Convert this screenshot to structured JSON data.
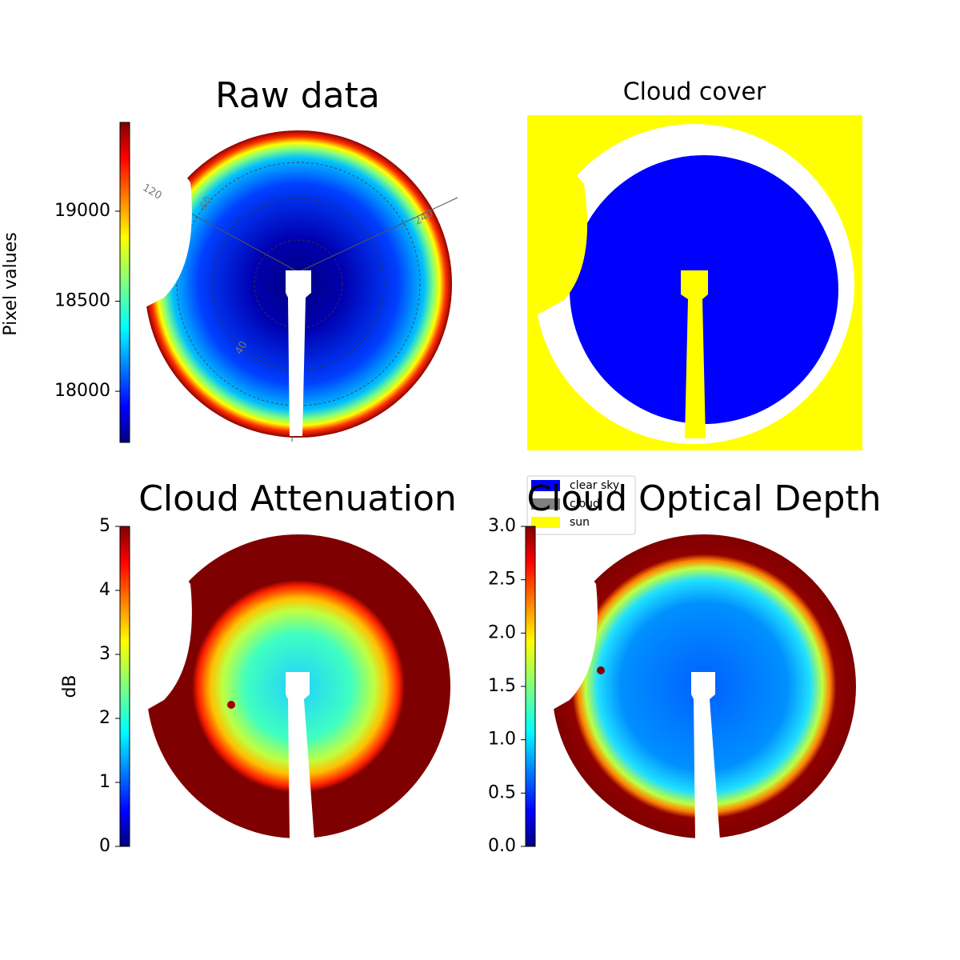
{
  "chart_data": [
    {
      "type": "image",
      "title": "Raw data",
      "ylabel": "Pixel values",
      "ylim": [
        17716,
        19493
      ],
      "yticks": [
        18000,
        18500,
        19000
      ],
      "colormap": "jet",
      "annotations": [
        "120",
        "60",
        "240",
        "40"
      ]
    },
    {
      "type": "image",
      "title": "Cloud cover",
      "legend": [
        {
          "name": "clear sky",
          "color": "#0000ff"
        },
        {
          "name": "cloud",
          "color": "#808080"
        },
        {
          "name": "sun",
          "color": "#ffff00"
        }
      ]
    },
    {
      "type": "image",
      "title": "Cloud Attenuation",
      "ylabel": "dB",
      "ylim": [
        0,
        5
      ],
      "yticks": [
        0,
        1,
        2,
        3,
        4,
        5
      ],
      "colormap": "jet"
    },
    {
      "type": "image",
      "title": "Cloud Optical Depth",
      "ylim": [
        0,
        3
      ],
      "yticks": [
        {
          "value": 0,
          "label": "0.0"
        },
        0.5,
        {
          "value": 1,
          "label": "1.0"
        },
        1.5,
        {
          "value": 2,
          "label": "2.0"
        },
        2.5,
        {
          "value": 3,
          "label": "3.0"
        }
      ],
      "colormap": "jet"
    }
  ]
}
